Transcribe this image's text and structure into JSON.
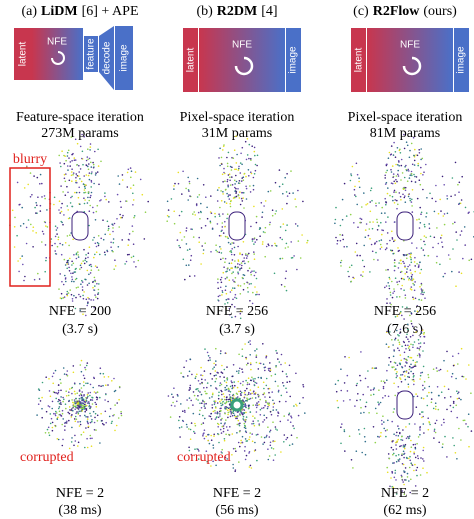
{
  "columns": [
    {
      "header": {
        "prefix": "(a)",
        "name": "LiDM",
        "suffix": "[6] + APE"
      },
      "diagram": [
        "latent",
        "NFE",
        "feature",
        "decode",
        "image"
      ],
      "caption": [
        "Feature-space iteration",
        "273M params"
      ],
      "rows": [
        {
          "nfe": "NFE = 200",
          "time": "(3.7 s)",
          "annotation": "blurry"
        },
        {
          "nfe": "NFE = 2",
          "time": "(38 ms)",
          "annotation": "corrupted"
        }
      ]
    },
    {
      "header": {
        "prefix": "(b)",
        "name": "R2DM",
        "suffix": "[4]"
      },
      "diagram": [
        "latent",
        "NFE",
        "image"
      ],
      "caption": [
        "Pixel-space iteration",
        "31M params"
      ],
      "rows": [
        {
          "nfe": "NFE = 256",
          "time": "(3.7 s)"
        },
        {
          "nfe": "NFE = 2",
          "time": "(56 ms)",
          "annotation": "corrupted"
        }
      ]
    },
    {
      "header": {
        "prefix": "(c)",
        "name": "R2Flow",
        "suffix": "(ours)"
      },
      "diagram": [
        "latent",
        "NFE",
        "image"
      ],
      "caption": [
        "Pixel-space iteration",
        "81M params"
      ],
      "rows": [
        {
          "nfe": "NFE = 256",
          "time": "(7.6 s)"
        },
        {
          "nfe": "NFE = 2",
          "time": "(62 ms)"
        }
      ]
    }
  ]
}
